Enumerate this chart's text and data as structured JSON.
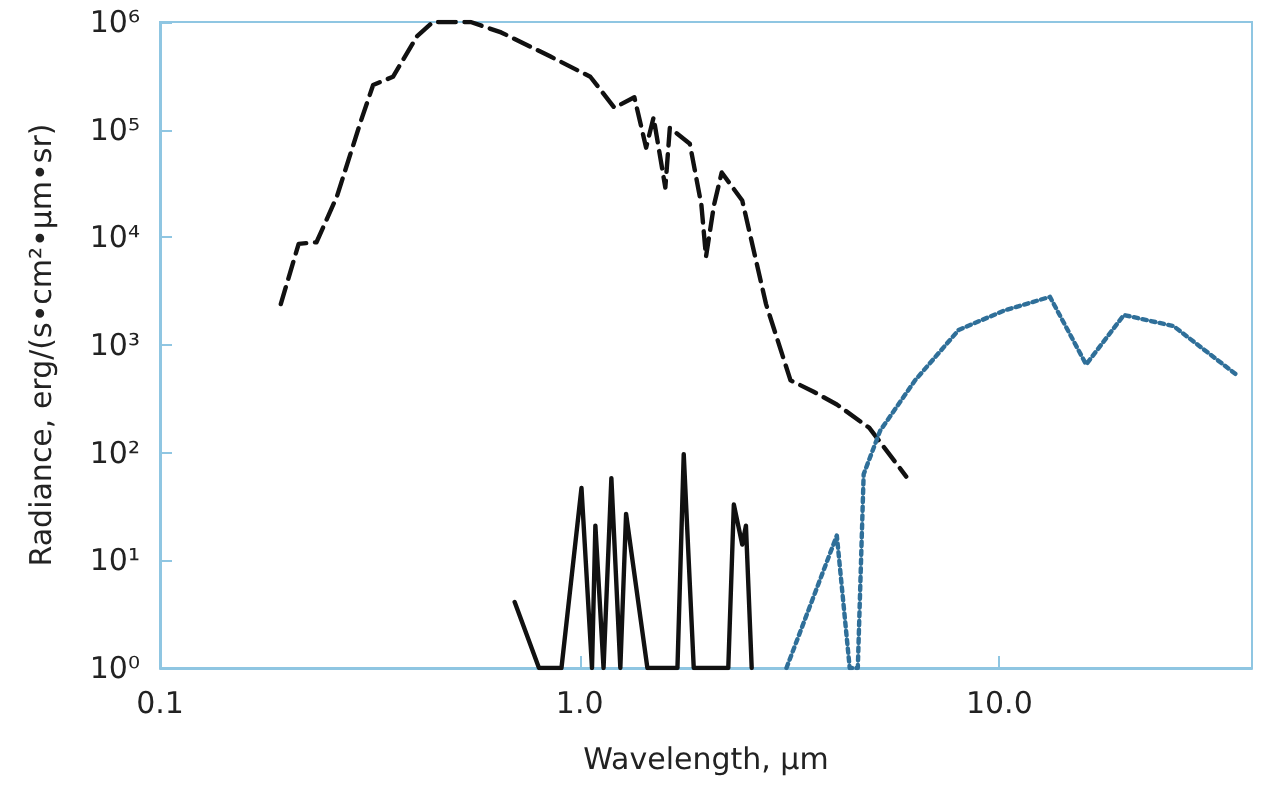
{
  "chart_data": {
    "type": "line",
    "xlabel": "Wavelength, μm",
    "ylabel": "Radiance, erg/(s•cm²•μm•sr)",
    "log": "xy",
    "marker": "none",
    "xlim": [
      0.1,
      40
    ],
    "ylim": [
      1,
      1000000
    ],
    "xticks": [
      {
        "value": 0.1,
        "label": "0.1"
      },
      {
        "value": 1,
        "label": "1.0"
      },
      {
        "value": 10,
        "label": "10.0"
      }
    ],
    "yticks": [
      {
        "value": 1,
        "label": "10⁰"
      },
      {
        "value": 10,
        "label": "10¹"
      },
      {
        "value": 100,
        "label": "10²"
      },
      {
        "value": 1000,
        "label": "10³"
      },
      {
        "value": 10000,
        "label": "10⁴"
      },
      {
        "value": 100000,
        "label": "10⁵"
      },
      {
        "value": 1000000,
        "label": "10⁶"
      }
    ],
    "series": [
      {
        "color": "#111111",
        "line_style": "dashed",
        "x": [
          0.194,
          0.214,
          0.236,
          0.264,
          0.301,
          0.322,
          0.359,
          0.41,
          0.447,
          0.55,
          0.65,
          0.85,
          1.06,
          1.21,
          1.35,
          1.44,
          1.5,
          1.6,
          1.64,
          1.83,
          1.95,
          2.0,
          2.09,
          2.18,
          2.44,
          2.78,
          3.18,
          3.6,
          4.1,
          4.9,
          6.0
        ],
        "values": [
          2400,
          8700,
          9000,
          24000,
          120000,
          260000,
          310000,
          740000,
          1000000,
          1000000,
          800000,
          480000,
          310000,
          160000,
          200000,
          68000,
          130000,
          29000,
          104000,
          74000,
          20000,
          6600,
          20000,
          40000,
          22000,
          2400,
          470,
          370,
          280,
          170,
          60
        ]
      },
      {
        "color": "#111111",
        "line_style": "solid",
        "x": [
          0.7,
          0.8,
          0.905,
          1.01,
          1.07,
          1.09,
          1.14,
          1.19,
          1.25,
          1.29,
          1.45,
          1.71,
          1.77,
          1.87,
          2.26,
          2.33,
          2.44,
          2.49,
          2.57
        ],
        "values": [
          4.1,
          1,
          1,
          47,
          1,
          21,
          1,
          58,
          1,
          27,
          1,
          1,
          97,
          1,
          1,
          33,
          14,
          21,
          1
        ]
      },
      {
        "color": "#2f6f99",
        "line_style": "dotted",
        "x": [
          3.11,
          4.1,
          4.4,
          4.6,
          4.75,
          5.2,
          6.3,
          8.0,
          10.3,
          13.2,
          16.1,
          19.8,
          26,
          36.5
        ],
        "values": [
          1,
          17,
          1,
          1,
          63,
          160,
          470,
          1380,
          2100,
          2800,
          660,
          1900,
          1500,
          540
        ]
      }
    ]
  }
}
